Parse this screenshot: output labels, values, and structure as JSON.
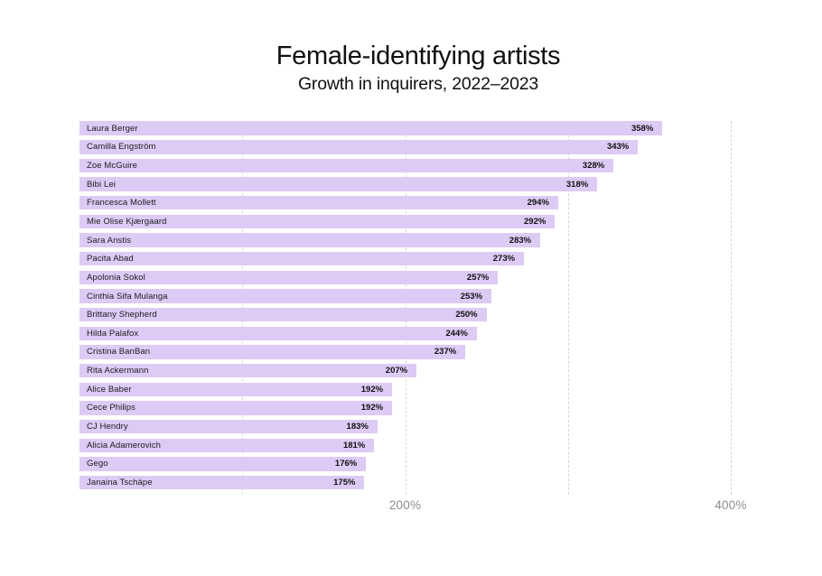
{
  "header": {
    "title": "Female-identifying artists",
    "subtitle": "Growth in inquirers, 2022–2023"
  },
  "chart_data": {
    "type": "bar",
    "orientation": "horizontal",
    "title": "Female-identifying artists",
    "subtitle": "Growth in inquirers, 2022–2023",
    "categories": [
      "Laura Berger",
      "Camilla Engström",
      "Zoe McGuire",
      "Bibi Lei",
      "Francesca Mollett",
      "Mie Olise Kjærgaard",
      "Sara Anstis",
      "Pacita Abad",
      "Apolonia Sokol",
      "Cinthia Sifa Mulanga",
      "Brittany Shepherd",
      "Hilda Palafox",
      "Cristina BanBan",
      "Rita Ackermann",
      "Alice Baber",
      "Cece Philips",
      "CJ Hendry",
      "Alicia Adamerovich",
      "Gego",
      "Janaina Tschäpe"
    ],
    "values": [
      358,
      343,
      328,
      318,
      294,
      292,
      283,
      273,
      257,
      253,
      250,
      244,
      237,
      207,
      192,
      192,
      183,
      181,
      176,
      175
    ],
    "value_suffix": "%",
    "xlim": [
      0,
      400
    ],
    "gridline_values": [
      100,
      200,
      300,
      400
    ],
    "x_tick_labels": [
      {
        "value": 200,
        "label": "200%"
      },
      {
        "value": 400,
        "label": "400%"
      }
    ],
    "legend": null,
    "grid": "dashed-vertical",
    "colors": {
      "bar_fill": "#ddcaf5",
      "bar_label_text": "#1c1c1c",
      "bar_value_text": "#111111",
      "grid_line": "#d6d6d6",
      "axis_tick_text": "#8c8c8c",
      "title_text": "#111111",
      "background": "#ffffff"
    }
  }
}
